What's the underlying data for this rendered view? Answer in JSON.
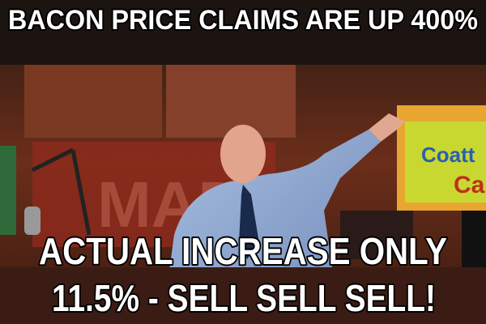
{
  "meme": {
    "top_text": "BACON PRICE CLAIMS ARE UP 400%",
    "bottom_text": [
      "ACTUAL INCREASE ONLY",
      "11.5% - SELL SELL SELL!"
    ],
    "scene": {
      "sign": [
        "Coatt",
        "Ca"
      ],
      "backdrop": "MAD"
    }
  }
}
